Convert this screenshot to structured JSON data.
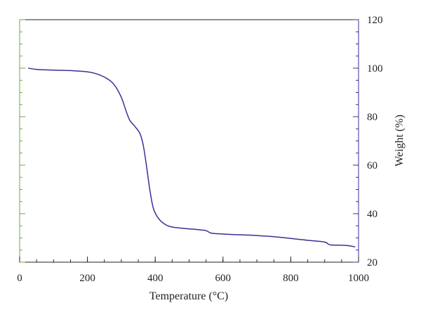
{
  "chart_data": {
    "type": "line",
    "title": "",
    "xlabel": "Temperature (°C)",
    "ylabel": "Weight (%)",
    "xlim": [
      0,
      1000
    ],
    "ylim": [
      20,
      120
    ],
    "x_ticks": [
      "0",
      "200",
      "400",
      "600",
      "800",
      "1000"
    ],
    "y_ticks": [
      "20",
      "40",
      "60",
      "80",
      "100",
      "120"
    ],
    "y_axis_side": "right",
    "grid": false,
    "legend": "none",
    "colors": {
      "line": "#3a2f96",
      "right_axis": "#3a2f96",
      "left_axis": "#6aaa4a",
      "frame": "#222222"
    },
    "series": [
      {
        "x": [
          25,
          50,
          100,
          150,
          200,
          230,
          260,
          280,
          300,
          315,
          325,
          340,
          355,
          365,
          375,
          385,
          395,
          410,
          430,
          450,
          480,
          520,
          550,
          565,
          600,
          650,
          700,
          750,
          800,
          850,
          900,
          915,
          950,
          970,
          990
        ],
        "y": [
          100,
          99.5,
          99.2,
          99,
          98.5,
          97.5,
          95.5,
          93,
          88,
          82,
          78.5,
          76,
          73,
          68,
          59,
          49,
          42,
          38,
          35.5,
          34.5,
          34,
          33.5,
          33,
          32,
          31.6,
          31.3,
          31,
          30.5,
          29.8,
          29,
          28.3,
          27.2,
          27,
          26.8,
          26.3
        ]
      }
    ]
  }
}
